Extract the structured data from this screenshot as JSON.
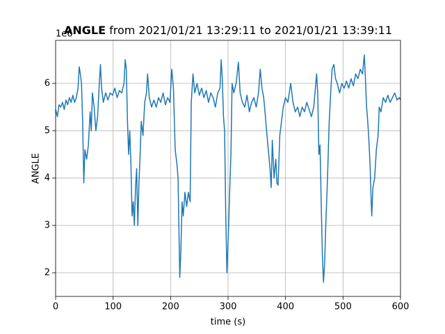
{
  "chart_data": {
    "type": "line",
    "title_bold": "ANGLE",
    "title": "from 2021/01/21 13:29:11 to 2021/01/21 13:39:11",
    "x_label": "time (s)",
    "y_label": "ANGLE",
    "y_offset_label": "1e6",
    "color": "#1f77b4",
    "grid": true,
    "xlim": [
      0,
      600
    ],
    "xticks": [
      0,
      100,
      200,
      300,
      400,
      500,
      600
    ],
    "ylim": [
      1.5,
      6.91
    ],
    "yticks": [
      2,
      3,
      4,
      5,
      6
    ],
    "x": [
      0,
      3,
      6,
      9,
      12,
      15,
      18,
      21,
      24,
      27,
      30,
      33,
      36,
      39,
      41,
      43,
      45,
      47,
      49,
      51,
      54,
      57,
      60,
      62,
      64,
      67,
      70,
      73,
      76,
      78,
      80,
      83,
      87,
      91,
      95,
      99,
      103,
      107,
      111,
      115,
      119,
      121,
      123,
      125,
      127,
      129,
      131,
      133,
      135,
      137,
      139,
      141,
      143,
      145,
      147,
      149,
      152,
      155,
      158,
      160,
      163,
      167,
      171,
      175,
      179,
      183,
      187,
      191,
      195,
      199,
      202,
      205,
      208,
      211,
      213,
      215,
      216,
      218,
      220,
      222,
      225,
      228,
      231,
      234,
      236,
      239,
      242,
      246,
      250,
      254,
      258,
      262,
      266,
      270,
      274,
      278,
      282,
      286,
      288,
      290,
      292,
      294,
      296,
      298,
      299,
      301,
      303,
      305,
      307,
      310,
      314,
      318,
      321,
      325,
      329,
      333,
      337,
      341,
      345,
      349,
      353,
      356,
      359,
      362,
      365,
      367,
      370,
      373,
      375,
      377,
      380,
      383,
      385,
      387,
      390,
      393,
      396,
      400,
      404,
      409,
      413,
      417,
      421,
      425,
      429,
      433,
      437,
      441,
      445,
      449,
      452,
      454,
      456,
      458,
      460,
      462,
      464,
      466,
      468,
      470,
      473,
      476,
      479,
      481,
      484,
      487,
      490,
      494,
      498,
      502,
      506,
      510,
      514,
      518,
      522,
      526,
      530,
      534,
      537,
      539,
      541,
      543,
      545,
      547,
      549,
      550,
      552,
      555,
      558,
      561,
      563,
      566,
      570,
      574,
      578,
      582,
      586,
      590,
      594,
      598,
      600
    ],
    "values": [
      5.45,
      5.3,
      5.55,
      5.5,
      5.6,
      5.45,
      5.65,
      5.55,
      5.7,
      5.6,
      5.75,
      5.6,
      5.7,
      5.9,
      6.35,
      6.2,
      6.0,
      5.2,
      3.9,
      4.6,
      4.4,
      4.7,
      5.4,
      5.0,
      5.8,
      5.5,
      5.0,
      5.3,
      6.0,
      6.4,
      5.9,
      5.6,
      5.8,
      5.65,
      5.8,
      5.75,
      5.9,
      5.7,
      5.85,
      5.8,
      6.0,
      6.5,
      6.3,
      5.2,
      4.5,
      5.0,
      4.3,
      3.2,
      3.5,
      3.0,
      3.8,
      4.2,
      3.0,
      3.9,
      4.5,
      5.2,
      4.9,
      5.6,
      5.8,
      6.2,
      5.7,
      5.5,
      5.65,
      5.5,
      5.7,
      5.6,
      5.8,
      5.55,
      5.7,
      5.6,
      6.3,
      5.9,
      4.6,
      4.3,
      4.0,
      2.6,
      1.9,
      2.5,
      3.5,
      3.2,
      3.7,
      3.4,
      3.7,
      3.5,
      5.6,
      6.2,
      5.8,
      6.0,
      5.75,
      5.9,
      5.7,
      5.85,
      5.6,
      5.8,
      5.7,
      5.5,
      5.8,
      5.9,
      6.5,
      6.1,
      5.3,
      5.0,
      3.2,
      2.0,
      2.3,
      3.0,
      3.8,
      4.5,
      6.0,
      5.8,
      6.0,
      6.45,
      5.8,
      5.6,
      5.5,
      5.75,
      5.4,
      5.6,
      5.7,
      5.5,
      5.8,
      6.3,
      5.9,
      5.7,
      5.3,
      5.0,
      4.6,
      4.2,
      3.8,
      4.8,
      4.0,
      4.4,
      3.9,
      3.85,
      4.9,
      5.2,
      5.5,
      5.7,
      5.6,
      6.0,
      5.6,
      5.4,
      5.5,
      5.3,
      5.5,
      5.4,
      5.6,
      5.45,
      5.3,
      5.5,
      5.9,
      6.2,
      5.8,
      4.5,
      4.7,
      3.5,
      2.4,
      1.8,
      2.2,
      3.0,
      4.0,
      5.2,
      5.9,
      6.3,
      6.4,
      6.1,
      6.0,
      5.8,
      6.0,
      5.9,
      6.05,
      5.9,
      6.1,
      5.95,
      6.2,
      6.1,
      6.3,
      6.2,
      6.6,
      6.1,
      5.5,
      5.2,
      4.8,
      4.3,
      3.5,
      3.2,
      3.8,
      4.0,
      4.6,
      4.9,
      5.5,
      5.4,
      5.7,
      5.6,
      5.75,
      5.6,
      5.7,
      5.8,
      5.65,
      5.7,
      5.65
    ]
  }
}
